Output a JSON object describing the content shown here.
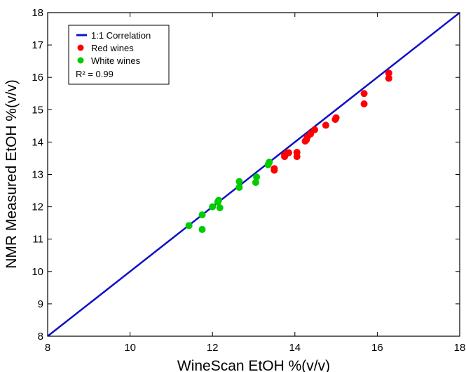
{
  "chart_data": {
    "type": "scatter",
    "title": "",
    "xlabel": "WineScan EtOH %(v/v)",
    "ylabel": "NMR Measured EtOH %(v/v)",
    "xlim": [
      8,
      18
    ],
    "ylim": [
      8,
      18
    ],
    "xticks": [
      "8",
      "10",
      "12",
      "14",
      "16",
      "18"
    ],
    "yticks": [
      "8",
      "9",
      "10",
      "11",
      "12",
      "13",
      "14",
      "15",
      "16",
      "17",
      "18"
    ],
    "grid": false,
    "legend_position": "top-left",
    "r_squared": "R² = 0.99",
    "series": [
      {
        "name": "1:1 Correlation",
        "kind": "line",
        "color": "#1010c8",
        "x": [
          8,
          18
        ],
        "y": [
          8,
          18
        ]
      },
      {
        "name": "Red wines",
        "kind": "scatter",
        "color": "#ff0000",
        "x": [
          13.5,
          13.5,
          13.75,
          13.75,
          13.8,
          13.85,
          14.05,
          14.05,
          14.25,
          14.28,
          14.3,
          14.38,
          14.48,
          14.75,
          14.98,
          15.0,
          15.68,
          15.68,
          16.28,
          16.28
        ],
        "y": [
          13.13,
          13.18,
          13.55,
          13.6,
          13.65,
          13.67,
          13.55,
          13.68,
          14.03,
          14.07,
          14.15,
          14.25,
          14.38,
          14.52,
          14.7,
          14.75,
          15.18,
          15.5,
          15.97,
          16.13
        ]
      },
      {
        "name": "White wines",
        "kind": "scatter",
        "color": "#00cc00",
        "x": [
          11.43,
          11.75,
          11.75,
          12.0,
          12.13,
          12.15,
          12.18,
          12.65,
          12.65,
          13.05,
          13.07,
          13.35,
          13.38
        ],
        "y": [
          11.42,
          11.3,
          11.75,
          12.0,
          12.15,
          12.2,
          11.97,
          12.6,
          12.78,
          12.75,
          12.92,
          13.3,
          13.38
        ]
      }
    ]
  }
}
